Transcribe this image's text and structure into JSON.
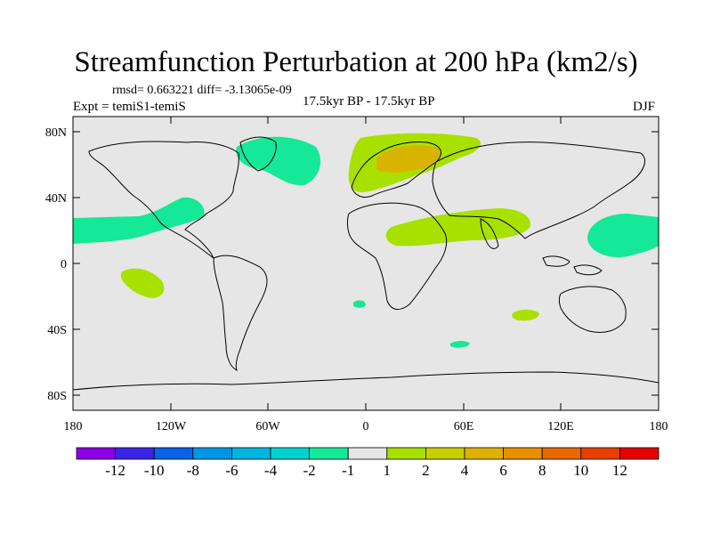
{
  "header": {
    "title": "Streamfunction Perturbation at 200 hPa (km2/s)",
    "stats": "rmsd= 0.663221 diff= -3.13065e-09",
    "experiment": "Expt = temiS1-temiS",
    "period": "17.5kyr BP - 17.5kyr BP",
    "season": "DJF"
  },
  "map": {
    "background_color": "#e6e6e6",
    "lat_labels": [
      "80N",
      "40N",
      "0",
      "40S",
      "80S"
    ],
    "lon_labels": [
      "180",
      "120W",
      "60W",
      "0",
      "60E",
      "120E",
      "180"
    ]
  },
  "regions": [
    {
      "name": "north-atlantic-anomaly",
      "value_band": "-2 to -1",
      "color": "#15e896"
    },
    {
      "name": "pacific-subtropical-anomaly",
      "value_band": "-2 to -1",
      "color": "#15e896"
    },
    {
      "name": "west-pacific-anomaly",
      "value_band": "-2 to -1",
      "color": "#15e896"
    },
    {
      "name": "europe-anomaly",
      "value_band": "1 to 2",
      "color": "#a8e000"
    },
    {
      "name": "europe-core-anomaly",
      "value_band": "2 to 4",
      "color": "#d8b400"
    },
    {
      "name": "arabia-india-anomaly",
      "value_band": "1 to 2",
      "color": "#a8e000"
    },
    {
      "name": "south-pacific-anomaly",
      "value_band": "1 to 2",
      "color": "#a8e000"
    },
    {
      "name": "south-atlantic-small-anomaly",
      "value_band": "-2 to -1",
      "color": "#15e896"
    },
    {
      "name": "indian-ocean-small-anomaly",
      "value_band": "1 to 2",
      "color": "#a8e000"
    },
    {
      "name": "southern-indian-small-anomaly",
      "value_band": "-2 to -1",
      "color": "#15e896"
    }
  ],
  "colorbar": {
    "colors": [
      "#8c00e6",
      "#3c24e6",
      "#0a62e6",
      "#0096e6",
      "#00b4e0",
      "#00d2d2",
      "#15e896",
      "#e6e6e6",
      "#a8e000",
      "#c8d000",
      "#e0b000",
      "#e69000",
      "#e66a00",
      "#e64000",
      "#e60000"
    ],
    "labels": [
      "-12",
      "-10",
      "-8",
      "-6",
      "-4",
      "-2",
      "-1",
      "1",
      "2",
      "4",
      "6",
      "8",
      "10",
      "12"
    ]
  }
}
